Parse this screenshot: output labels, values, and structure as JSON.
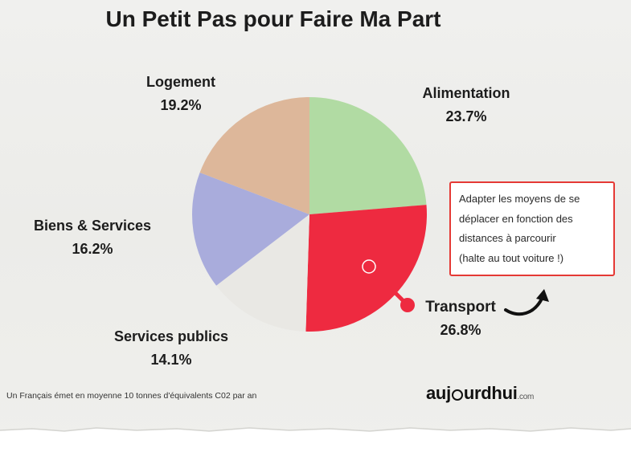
{
  "chart_data": {
    "type": "pie",
    "title": "Un Petit Pas pour Faire Ma Part",
    "slices": [
      {
        "label": "Alimentation",
        "value": 23.7,
        "value_label": "23.7%",
        "color": "#b1dba3"
      },
      {
        "label": "Transport",
        "value": 26.8,
        "value_label": "26.8%",
        "color": "#ee2a40"
      },
      {
        "label": "Services publics",
        "value": 14.1,
        "value_label": "14.1%",
        "color": "#e9e8e4"
      },
      {
        "label": "Biens & Services",
        "value": 16.2,
        "value_label": "16.2%",
        "color": "#a9acdc"
      },
      {
        "label": "Logement",
        "value": 19.2,
        "value_label": "19.2%",
        "color": "#ddb79a"
      }
    ],
    "start_angle_deg": 0,
    "direction": "clockwise",
    "highlighted_slice": "Transport"
  },
  "callout": {
    "lines": [
      "Adapter les moyens de se",
      "déplacer en fonction des",
      "distances à parcourir",
      "(halte au tout voiture !)"
    ],
    "border_color": "#e53935"
  },
  "footnote": "Un Français émet en moyenne 10 tonnes d'équivalents C02 par an",
  "logo": {
    "part1": "auj",
    "part2": "urdhui",
    "suffix": ".com"
  }
}
